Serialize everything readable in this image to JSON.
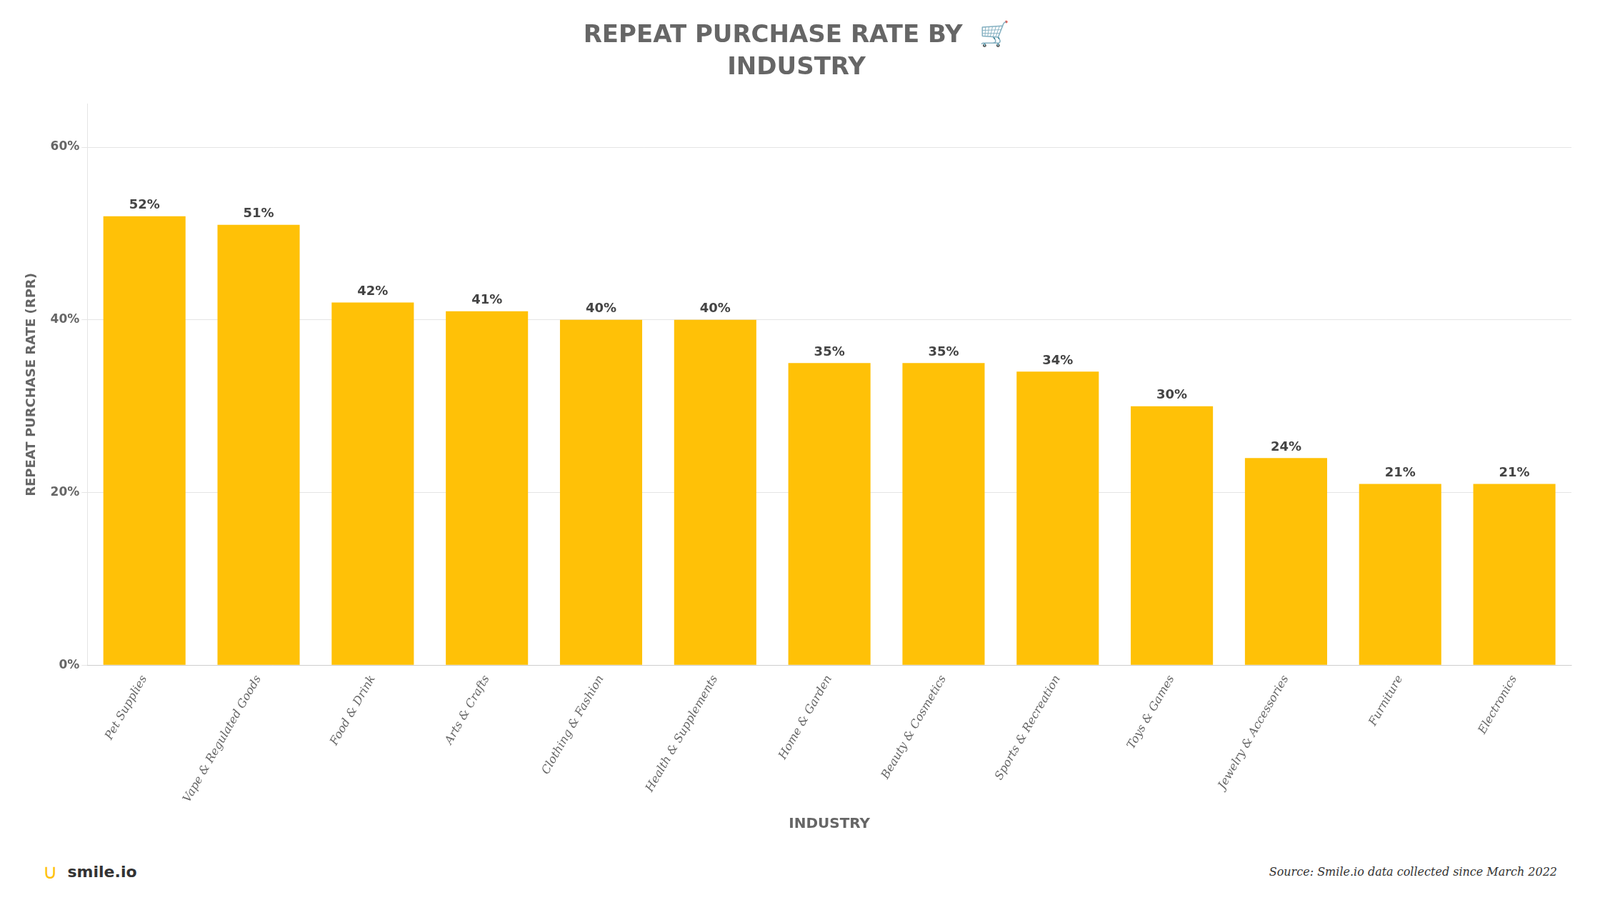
{
  "chart_data": {
    "type": "bar",
    "title": "REPEAT PURCHASE RATE BY  🛒",
    "subtitle": "INDUSTRY",
    "ylabel": "REPEAT PURCHASE RATE (RPR)",
    "xlabel": "INDUSTRY",
    "categories": [
      "Pet Supplies",
      "Vape & Regulated Goods",
      "Food & Drink",
      "Arts & Crafts",
      "Clothing & Fashion",
      "Health & Supplements",
      "Home & Garden",
      "Beauty & Cosmetics",
      "Sports & Recreation",
      "Toys & Games",
      "Jewelry & Accessories",
      "Furniture",
      "Electronics"
    ],
    "values": [
      52,
      51,
      42,
      41,
      40,
      40,
      35,
      35,
      34,
      30,
      24,
      21,
      21
    ],
    "value_labels": [
      "52%",
      "51%",
      "42%",
      "41%",
      "40%",
      "40%",
      "35%",
      "35%",
      "34%",
      "30%",
      "24%",
      "21%",
      "21%"
    ],
    "data_labels": true,
    "color": "#FFC107",
    "ylim": [
      0,
      65
    ],
    "yticks": [
      {
        "value": 0,
        "label": "0%"
      },
      {
        "value": 20,
        "label": "20%"
      },
      {
        "value": 40,
        "label": "40%"
      },
      {
        "value": 60,
        "label": "60%"
      }
    ],
    "grid": true,
    "annotations": [
      "∪",
      "smile.io",
      "Source: Smile.io data collected since March 2022"
    ]
  }
}
